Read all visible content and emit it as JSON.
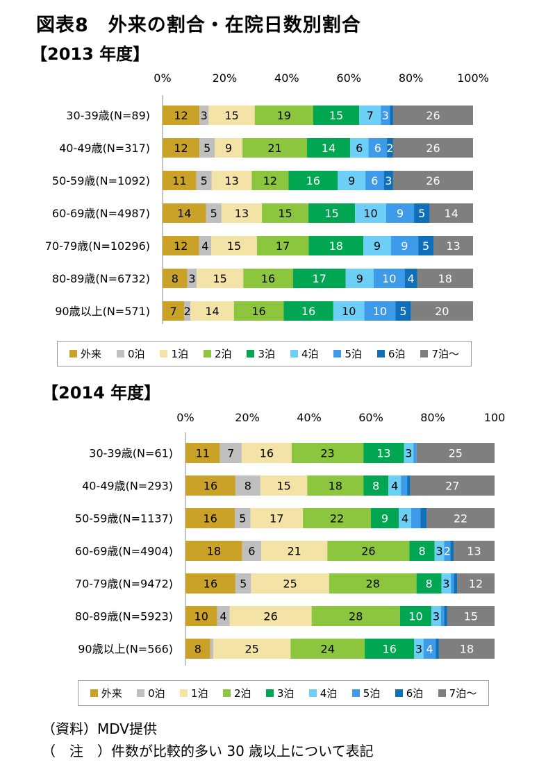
{
  "title": "図表8　外来の割合・在院日数別割合",
  "source_note": "（資料）MDV提供",
  "footnote": "（　注　）件数が比較的多い 30 歳以上について表記",
  "chart_data": [
    {
      "type": "bar",
      "stacked": "percent",
      "orientation": "horizontal",
      "title": "【2013 年度】",
      "categories": [
        "30-39歳(N=89)",
        "40-49歳(N=317)",
        "50-59歳(N=1092)",
        "60-69歳(N=4987)",
        "70-79歳(N=10296)",
        "80-89歳(N=6732)",
        "90歳以上(N=571)"
      ],
      "tick_labels": [
        "0%",
        "20%",
        "40%",
        "60%",
        "80%",
        "100%"
      ],
      "xlim": [
        0,
        100
      ],
      "legend_position": "bottom",
      "series": [
        {
          "name": "外来",
          "color": "#C9A227",
          "values": [
            12,
            12,
            11,
            14,
            12,
            8,
            7
          ],
          "labels": [
            "12",
            "12",
            "11",
            "14",
            "12",
            "8",
            "7"
          ]
        },
        {
          "name": "0泊",
          "color": "#BFBFBF",
          "values": [
            3,
            5,
            5,
            5,
            4,
            3,
            2
          ],
          "labels": [
            "3",
            "5",
            "5",
            "5",
            "4",
            "3",
            "2"
          ]
        },
        {
          "name": "1泊",
          "color": "#F3E3A6",
          "values": [
            15,
            9,
            13,
            13,
            15,
            15,
            14
          ],
          "labels": [
            "15",
            "9",
            "13",
            "13",
            "15",
            "15",
            "14"
          ]
        },
        {
          "name": "2泊",
          "color": "#8CC63F",
          "values": [
            19,
            21,
            12,
            15,
            17,
            16,
            16
          ],
          "labels": [
            "19",
            "21",
            "12",
            "15",
            "17",
            "16",
            "16"
          ]
        },
        {
          "name": "3泊",
          "color": "#00A651",
          "values": [
            15,
            14,
            16,
            15,
            18,
            17,
            16
          ],
          "labels": [
            "15",
            "14",
            "16",
            "15",
            "18",
            "17",
            "16"
          ]
        },
        {
          "name": "4泊",
          "color": "#6DCFF6",
          "values": [
            7,
            6,
            9,
            10,
            9,
            9,
            10
          ],
          "labels": [
            "7",
            "6",
            "9",
            "10",
            "9",
            "9",
            "10"
          ]
        },
        {
          "name": "5泊",
          "color": "#3D9BE9",
          "values": [
            3,
            6,
            6,
            9,
            9,
            10,
            10
          ],
          "labels": [
            "3",
            "6",
            "6",
            "9",
            "9",
            "10",
            "10"
          ]
        },
        {
          "name": "6泊",
          "color": "#0F6FB8",
          "values": [
            1,
            2,
            3,
            5,
            5,
            4,
            5
          ],
          "labels": [
            "",
            "2",
            "3",
            "5",
            "5",
            "4",
            "5"
          ]
        },
        {
          "name": "7泊～",
          "color": "#7F7F7F",
          "values": [
            26,
            26,
            26,
            14,
            13,
            18,
            20
          ],
          "labels": [
            "26",
            "26",
            "26",
            "14",
            "13",
            "18",
            "20"
          ]
        }
      ]
    },
    {
      "type": "bar",
      "stacked": "percent",
      "orientation": "horizontal",
      "title": "【2014 年度】",
      "categories": [
        "30-39歳(N=61)",
        "40-49歳(N=293)",
        "50-59歳(N=1137)",
        "60-69歳(N=4904)",
        "70-79歳(N=9472)",
        "80-89歳(N=5923)",
        "90歳以上(N=566)"
      ],
      "tick_labels": [
        "0%",
        "20%",
        "40%",
        "60%",
        "80%",
        "100"
      ],
      "xlim": [
        0,
        100
      ],
      "legend_position": "bottom",
      "series": [
        {
          "name": "外来",
          "color": "#C9A227",
          "values": [
            11,
            16,
            16,
            18,
            16,
            10,
            8
          ],
          "labels": [
            "11",
            "16",
            "16",
            "18",
            "16",
            "10",
            "8"
          ]
        },
        {
          "name": "0泊",
          "color": "#BFBFBF",
          "values": [
            7,
            8,
            5,
            6,
            5,
            4,
            1
          ],
          "labels": [
            "7",
            "8",
            "5",
            "6",
            "5",
            "4",
            ""
          ]
        },
        {
          "name": "1泊",
          "color": "#F3E3A6",
          "values": [
            16,
            15,
            17,
            21,
            25,
            26,
            25
          ],
          "labels": [
            "16",
            "15",
            "17",
            "21",
            "25",
            "26",
            "25"
          ]
        },
        {
          "name": "2泊",
          "color": "#8CC63F",
          "values": [
            23,
            18,
            22,
            26,
            28,
            28,
            24
          ],
          "labels": [
            "23",
            "18",
            "22",
            "26",
            "28",
            "28",
            "24"
          ]
        },
        {
          "name": "3泊",
          "color": "#00A651",
          "values": [
            13,
            8,
            9,
            8,
            8,
            10,
            16
          ],
          "labels": [
            "13",
            "8",
            "9",
            "8",
            "8",
            "10",
            "16"
          ]
        },
        {
          "name": "4泊",
          "color": "#6DCFF6",
          "values": [
            3,
            4,
            4,
            3,
            3,
            3,
            3
          ],
          "labels": [
            "3",
            "4",
            "4",
            "3",
            "3",
            "3",
            "3"
          ]
        },
        {
          "name": "5泊",
          "color": "#3D9BE9",
          "values": [
            1,
            2,
            3,
            2,
            1,
            1,
            4
          ],
          "labels": [
            "",
            "",
            "",
            "2",
            "",
            "",
            "4"
          ]
        },
        {
          "name": "6泊",
          "color": "#0F6FB8",
          "values": [
            0,
            1,
            2,
            1,
            1,
            1,
            1
          ],
          "labels": [
            "",
            "",
            "",
            "",
            "",
            "",
            ""
          ]
        },
        {
          "name": "7泊～",
          "color": "#7F7F7F",
          "values": [
            25,
            27,
            22,
            13,
            12,
            15,
            18
          ],
          "labels": [
            "25",
            "27",
            "22",
            "13",
            "12",
            "15",
            "18"
          ]
        }
      ]
    }
  ]
}
